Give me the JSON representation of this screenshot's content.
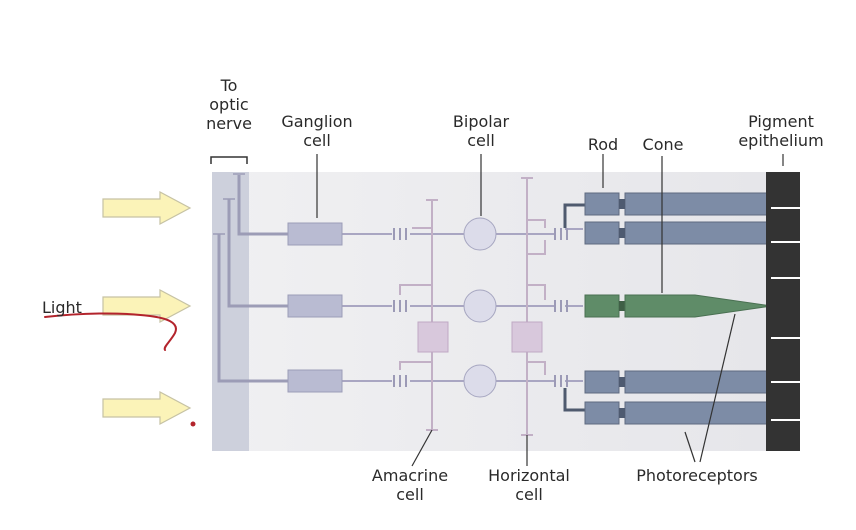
{
  "labels": {
    "to_optic_nerve": "To\noptic\nnerve",
    "ganglion_cell": "Ganglion\ncell",
    "bipolar_cell": "Bipolar\ncell",
    "rod": "Rod",
    "cone": "Cone",
    "pigment_epithelium": "Pigment\nepithelium",
    "light": "Light",
    "amacrine_cell": "Amacrine\ncell",
    "horizontal_cell": "Horizontal\ncell",
    "photoreceptors": "Photoreceptors"
  },
  "colors": {
    "retina_bg": "#ececee",
    "nerve_layer": "#cdd0dc",
    "ganglion": "#b9bbd2",
    "bipolar": "#dcdcea",
    "neuron_line": "#a9a6c2",
    "amacrine": "#d8c8dc",
    "rod": "#7d8ca6",
    "cone": "#5f8c68",
    "epithelium": "#333333",
    "arrow_fill": "#fbf3b8",
    "arrow_stroke": "#b8b49a",
    "annotation": "#b3242c"
  }
}
